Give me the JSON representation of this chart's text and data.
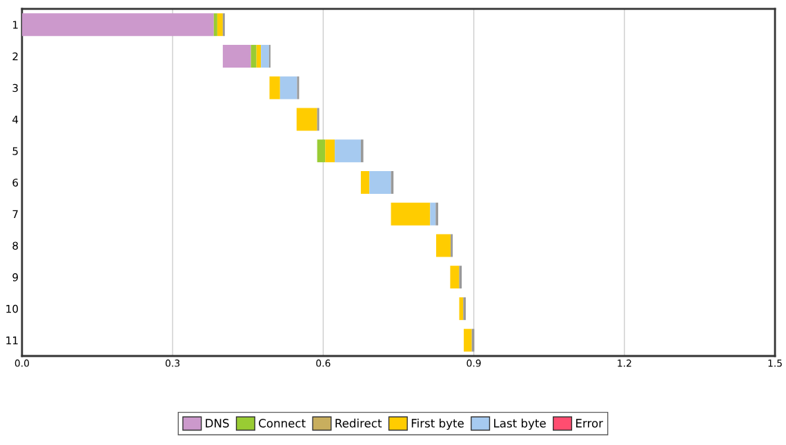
{
  "chart_data": {
    "type": "bar",
    "orientation": "horizontal",
    "categories": [
      "1",
      "2",
      "3",
      "4",
      "5",
      "6",
      "7",
      "8",
      "9",
      "10",
      "11"
    ],
    "series": [
      {
        "name": "DNS",
        "color": "#cc99cc",
        "values": [
          0.382,
          0.056,
          null,
          null,
          null,
          null,
          null,
          null,
          null,
          null,
          null
        ],
        "base": [
          0,
          0.4,
          null,
          null,
          null,
          null,
          null,
          null,
          null,
          null,
          null
        ]
      },
      {
        "name": "Connect",
        "color": "#99cc33",
        "values": [
          0.007,
          0.011,
          null,
          null,
          0.016,
          null,
          null,
          null,
          null,
          null,
          null
        ],
        "base": [
          0.382,
          0.456,
          null,
          null,
          0.588,
          null,
          null,
          null,
          null,
          null,
          null
        ]
      },
      {
        "name": "Redirect",
        "color": "#c8ae5e",
        "values": [
          null,
          null,
          null,
          null,
          null,
          null,
          null,
          null,
          null,
          null,
          null
        ]
      },
      {
        "name": "First byte",
        "color": "#ffcc00",
        "values": [
          0.011,
          0.009,
          0.021,
          0.041,
          0.019,
          0.017,
          0.078,
          0.029,
          0.018,
          0.008,
          0.016
        ],
        "base": [
          0.389,
          0.467,
          0.493,
          0.547,
          0.604,
          0.675,
          0.735,
          0.825,
          0.853,
          0.871,
          0.88
        ]
      },
      {
        "name": "Last byte",
        "color": "#a6caf0",
        "values": [
          null,
          0.016,
          0.034,
          null,
          0.052,
          0.043,
          0.011,
          null,
          null,
          null,
          null
        ],
        "base": [
          null,
          0.476,
          0.514,
          null,
          0.623,
          0.692,
          0.813,
          null,
          null,
          null,
          null
        ]
      },
      {
        "name": "Error",
        "color": "#ff4d70",
        "values": [
          null,
          null,
          null,
          null,
          null,
          null,
          null,
          null,
          null,
          null,
          null
        ]
      },
      {
        "color": "#999999",
        "values": [
          0.004,
          0.003,
          0.004,
          0.004,
          0.005,
          0.005,
          0.005,
          0.004,
          0.005,
          0.005,
          0.005
        ],
        "base": [
          0.4,
          0.492,
          0.548,
          0.588,
          0.675,
          0.735,
          0.824,
          0.854,
          0.871,
          0.879,
          0.896
        ]
      }
    ],
    "xlim": [
      0,
      1.5
    ],
    "xticks": [
      {
        "value": 0,
        "label": "0.0"
      },
      0.3,
      0.6,
      0.9,
      1.2,
      {
        "value": 1.5,
        "label": "1.5"
      }
    ],
    "grid": "x",
    "legend": "bottom"
  }
}
